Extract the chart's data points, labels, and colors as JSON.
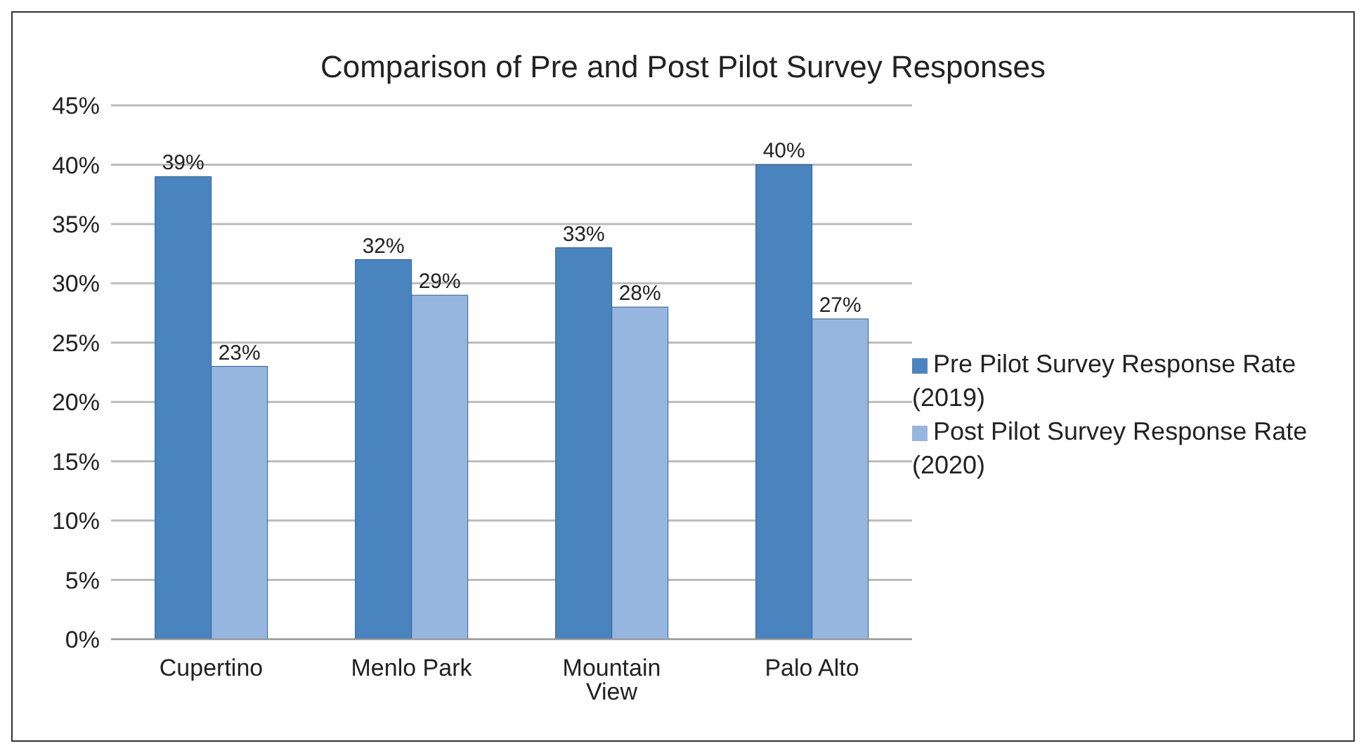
{
  "chart_data": {
    "type": "bar",
    "title": "Comparison of Pre and Post Pilot Survey Responses",
    "categories": [
      "Cupertino",
      "Menlo Park",
      "Mountain View",
      "Palo Alto"
    ],
    "series": [
      {
        "name": "Pre Pilot Survey Response Rate (2019)",
        "color": "#4a84bf",
        "values": [
          39,
          32,
          33,
          40
        ],
        "value_labels": [
          "39%",
          "32%",
          "33%",
          "40%"
        ]
      },
      {
        "name": "Post Pilot Survey Response Rate (2020)",
        "color": "#97b6df",
        "values": [
          23,
          29,
          28,
          27
        ],
        "value_labels": [
          "23%",
          "29%",
          "28%",
          "27%"
        ]
      }
    ],
    "ylim": [
      0,
      45
    ],
    "yticks": [
      {
        "value": 0,
        "label": "0%"
      },
      {
        "value": 5,
        "label": "5%"
      },
      {
        "value": 10,
        "label": "10%"
      },
      {
        "value": 15,
        "label": "15%"
      },
      {
        "value": 20,
        "label": "20%"
      },
      {
        "value": 25,
        "label": "25%"
      },
      {
        "value": 30,
        "label": "30%"
      },
      {
        "value": 35,
        "label": "35%"
      },
      {
        "value": 40,
        "label": "40%"
      },
      {
        "value": 45,
        "label": "45%"
      }
    ],
    "grid": "y",
    "legend": "right"
  }
}
